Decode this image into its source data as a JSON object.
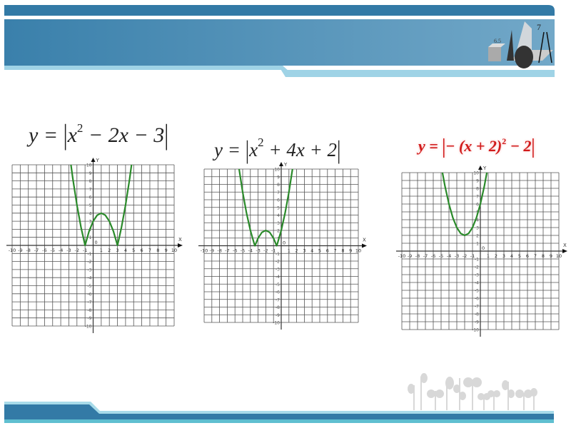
{
  "colors": {
    "header_dark": "#337aa6",
    "header_light": "#6aa3c6",
    "band_light": "#9fd3e6",
    "curve": "#2a8a2a",
    "grid": "#555555",
    "formula_red": "#d11a1a"
  },
  "header": {
    "logo_icon": "geometry-shapes-logo"
  },
  "footer": {
    "decoration_icon": "plant-sprouts-decoration"
  },
  "formulas": [
    {
      "pre": "y = ",
      "bar_l": "|",
      "body": "x",
      "sup": "2",
      "post": " − 2x − 3",
      "bar_r": "|"
    },
    {
      "pre": "y = ",
      "bar_l": "|",
      "body": "x",
      "sup": "2",
      "post": " + 4x + 2",
      "bar_r": "|"
    },
    {
      "pre": "y = ",
      "bar_l": "|",
      "body": "− (x + 2)",
      "sup": "2",
      "post": " − 2",
      "bar_r": "|"
    }
  ],
  "chart_data": [
    {
      "type": "line",
      "xlabel": "X",
      "ylabel": "Y",
      "xlim": [
        -10,
        10
      ],
      "ylim": [
        -10,
        10
      ],
      "grid": true,
      "x": [
        -2.74,
        -2.5,
        -2,
        -1.5,
        -1,
        -0.5,
        0,
        0.5,
        1,
        1.5,
        2,
        2.5,
        3,
        3.5,
        4,
        4.5,
        4.74
      ],
      "y": [
        10,
        8.25,
        5,
        2.25,
        0,
        1.75,
        3,
        3.75,
        4,
        3.75,
        3,
        1.75,
        0,
        2.25,
        5,
        8.25,
        10
      ]
    },
    {
      "type": "line",
      "xlabel": "X",
      "ylabel": "Y",
      "xlim": [
        -10,
        10
      ],
      "ylim": [
        -10,
        10
      ],
      "grid": true,
      "x": [
        -5.46,
        -5,
        -4.5,
        -4,
        -3.5,
        -3.41,
        -3,
        -2.5,
        -2,
        -1.5,
        -1,
        -0.59,
        -0.5,
        0,
        0.5,
        1,
        1.46
      ],
      "y": [
        10,
        7,
        4.25,
        2,
        0.25,
        0,
        1,
        1.75,
        2,
        1.75,
        1,
        0,
        0.25,
        2,
        4.25,
        7,
        10
      ]
    },
    {
      "type": "line",
      "xlabel": "X",
      "ylabel": "Y",
      "xlim": [
        -10,
        10
      ],
      "ylim": [
        -10,
        10
      ],
      "grid": true,
      "x": [
        -4.83,
        -4.5,
        -4,
        -3.5,
        -3,
        -2.5,
        -2,
        -1.5,
        -1,
        -0.5,
        0,
        0.5,
        0.83
      ],
      "y": [
        10,
        8.25,
        6,
        4.25,
        3,
        2.25,
        2,
        2.25,
        3,
        4.25,
        6,
        8.25,
        10
      ]
    }
  ],
  "tick_labels": {
    "x": [
      "-10",
      "-9",
      "-8",
      "-7",
      "-6",
      "-5",
      "-4",
      "-3",
      "-2",
      "-1",
      "1",
      "2",
      "3",
      "4",
      "5",
      "6",
      "7",
      "8",
      "9",
      "10"
    ],
    "y": [
      "10",
      "9",
      "8",
      "7",
      "6",
      "5",
      "4",
      "3",
      "2",
      "1",
      "-1",
      "-2",
      "-3",
      "-4",
      "-5",
      "-6",
      "-7",
      "-8",
      "-9",
      "-10"
    ],
    "origin": "0"
  }
}
